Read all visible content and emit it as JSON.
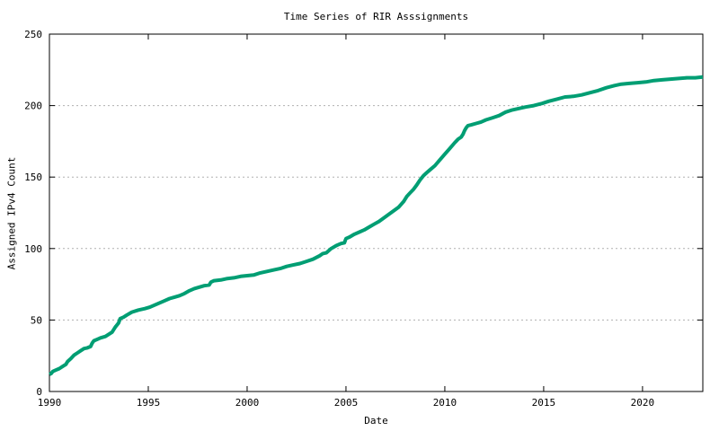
{
  "chart_data": {
    "type": "line",
    "title": "Time Series of RIR Asssignments",
    "xlabel": "Date",
    "ylabel": "Assigned IPv4 Count",
    "xlim": [
      1990,
      2023.05
    ],
    "ylim": [
      0,
      250
    ],
    "x_ticks": [
      1990,
      1995,
      2000,
      2005,
      2010,
      2015,
      2020
    ],
    "y_ticks": [
      0,
      50,
      100,
      150,
      200,
      250
    ],
    "grid": "horizontal-dashed",
    "grid_color": "#b0b0b0",
    "axis_color": "#000000",
    "legend": "none",
    "series": [
      {
        "name": "RIR assignments",
        "color": "#009e73",
        "line_width": 4,
        "points": [
          [
            1990.0,
            12
          ],
          [
            1990.08,
            12.5
          ],
          [
            1990.17,
            14
          ],
          [
            1990.33,
            15
          ],
          [
            1990.5,
            16
          ],
          [
            1990.67,
            17.5
          ],
          [
            1990.83,
            19
          ],
          [
            1990.92,
            21
          ],
          [
            1991.08,
            23
          ],
          [
            1991.25,
            25.5
          ],
          [
            1991.42,
            27
          ],
          [
            1991.58,
            28.5
          ],
          [
            1991.75,
            30
          ],
          [
            1991.92,
            30.5
          ],
          [
            1992.08,
            31.5
          ],
          [
            1992.17,
            34
          ],
          [
            1992.25,
            35.5
          ],
          [
            1992.42,
            36.5
          ],
          [
            1992.58,
            37.5
          ],
          [
            1992.83,
            38.5
          ],
          [
            1993.0,
            40
          ],
          [
            1993.17,
            41.5
          ],
          [
            1993.33,
            45
          ],
          [
            1993.5,
            48
          ],
          [
            1993.58,
            51
          ],
          [
            1993.75,
            52
          ],
          [
            1993.92,
            53.5
          ],
          [
            1994.17,
            55.5
          ],
          [
            1994.5,
            57
          ],
          [
            1994.83,
            58
          ],
          [
            1995.08,
            59
          ],
          [
            1995.33,
            60.5
          ],
          [
            1995.58,
            62
          ],
          [
            1995.83,
            63.5
          ],
          [
            1996.08,
            65
          ],
          [
            1996.33,
            66
          ],
          [
            1996.58,
            67
          ],
          [
            1996.83,
            68.5
          ],
          [
            1997.08,
            70.5
          ],
          [
            1997.33,
            72
          ],
          [
            1997.58,
            73
          ],
          [
            1997.83,
            74
          ],
          [
            1998.08,
            74.5
          ],
          [
            1998.17,
            76.5
          ],
          [
            1998.33,
            77.5
          ],
          [
            1998.67,
            78
          ],
          [
            1999.0,
            79
          ],
          [
            1999.33,
            79.5
          ],
          [
            1999.67,
            80.5
          ],
          [
            2000.0,
            81
          ],
          [
            2000.33,
            81.5
          ],
          [
            2000.67,
            83
          ],
          [
            2001.0,
            84
          ],
          [
            2001.33,
            85
          ],
          [
            2001.67,
            86
          ],
          [
            2002.0,
            87.5
          ],
          [
            2002.33,
            88.5
          ],
          [
            2002.67,
            89.5
          ],
          [
            2003.0,
            91
          ],
          [
            2003.33,
            92.5
          ],
          [
            2003.67,
            95
          ],
          [
            2003.83,
            96.5
          ],
          [
            2004.0,
            97
          ],
          [
            2004.25,
            100
          ],
          [
            2004.5,
            102
          ],
          [
            2004.75,
            103.5
          ],
          [
            2004.92,
            104
          ],
          [
            2005.0,
            107
          ],
          [
            2005.17,
            108
          ],
          [
            2005.42,
            110
          ],
          [
            2005.67,
            111.5
          ],
          [
            2005.92,
            113
          ],
          [
            2006.17,
            115
          ],
          [
            2006.42,
            117
          ],
          [
            2006.67,
            119
          ],
          [
            2006.92,
            121.5
          ],
          [
            2007.17,
            124
          ],
          [
            2007.42,
            126.5
          ],
          [
            2007.67,
            129
          ],
          [
            2007.92,
            133
          ],
          [
            2008.08,
            136.5
          ],
          [
            2008.25,
            139
          ],
          [
            2008.42,
            141.5
          ],
          [
            2008.58,
            144.5
          ],
          [
            2008.75,
            148
          ],
          [
            2008.92,
            151
          ],
          [
            2009.08,
            153
          ],
          [
            2009.25,
            155
          ],
          [
            2009.5,
            158
          ],
          [
            2009.75,
            162
          ],
          [
            2010.0,
            166
          ],
          [
            2010.25,
            170
          ],
          [
            2010.5,
            174
          ],
          [
            2010.67,
            176.5
          ],
          [
            2010.83,
            178
          ],
          [
            2010.92,
            180
          ],
          [
            2011.0,
            182.5
          ],
          [
            2011.08,
            184.5
          ],
          [
            2011.17,
            186
          ],
          [
            2011.33,
            186.5
          ],
          [
            2011.58,
            187.5
          ],
          [
            2011.83,
            188.5
          ],
          [
            2012.08,
            190
          ],
          [
            2012.42,
            191.5
          ],
          [
            2012.75,
            193
          ],
          [
            2013.08,
            195.5
          ],
          [
            2013.42,
            197
          ],
          [
            2013.75,
            198
          ],
          [
            2014.08,
            199
          ],
          [
            2014.5,
            200
          ],
          [
            2014.92,
            201.5
          ],
          [
            2015.25,
            203
          ],
          [
            2015.67,
            204.5
          ],
          [
            2016.08,
            206
          ],
          [
            2016.5,
            206.5
          ],
          [
            2016.92,
            207.5
          ],
          [
            2017.33,
            209
          ],
          [
            2017.75,
            210.5
          ],
          [
            2018.17,
            212.5
          ],
          [
            2018.58,
            214
          ],
          [
            2018.92,
            215
          ],
          [
            2019.33,
            215.5
          ],
          [
            2019.75,
            216
          ],
          [
            2020.17,
            216.5
          ],
          [
            2020.58,
            217.5
          ],
          [
            2021.0,
            218
          ],
          [
            2021.42,
            218.5
          ],
          [
            2021.83,
            219
          ],
          [
            2022.25,
            219.5
          ],
          [
            2022.67,
            219.5
          ],
          [
            2023.05,
            220
          ]
        ]
      }
    ]
  }
}
